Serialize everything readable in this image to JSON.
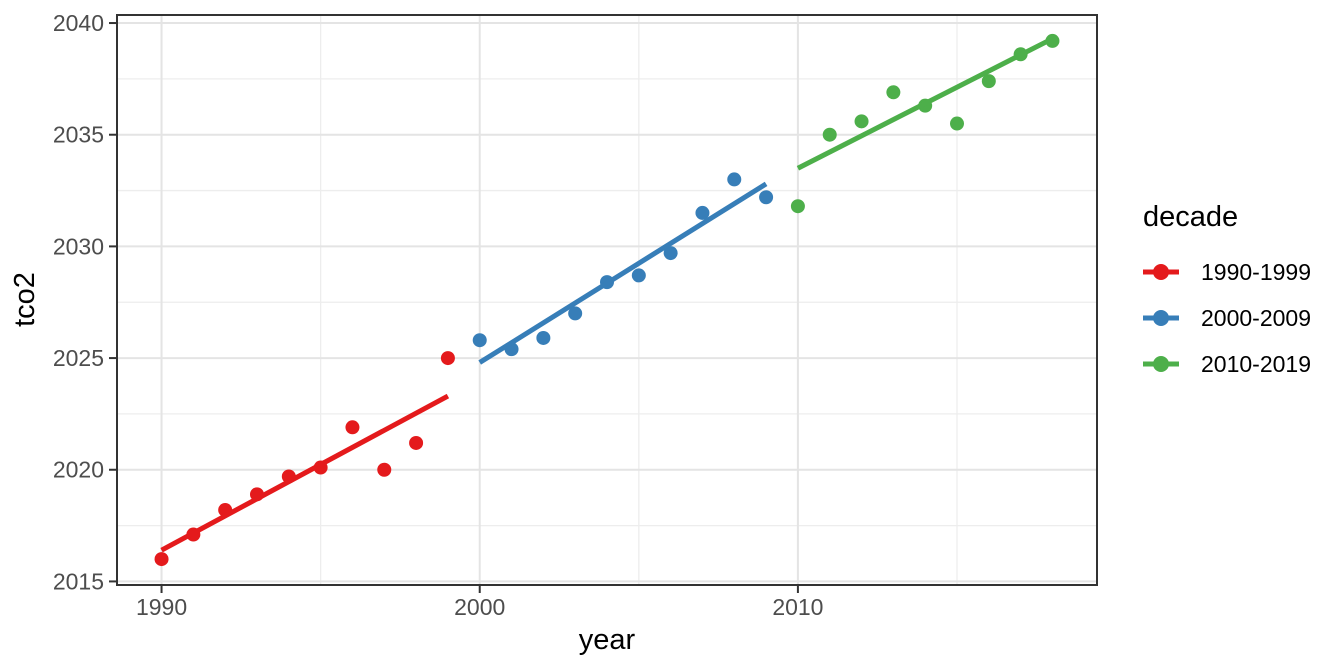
{
  "chart_data": {
    "type": "scatter",
    "title": "",
    "xlabel": "year",
    "ylabel": "tco2",
    "legend_title": "decade",
    "legend_position": "right",
    "legend_key_icon": "line-with-dot",
    "grid": true,
    "xlim": [
      1988.6,
      2019.4
    ],
    "ylim": [
      2014.84,
      2040.36
    ],
    "x_ticks": [
      1990,
      2000,
      2010
    ],
    "x_minor_gridlines": [
      1995,
      2005,
      2015
    ],
    "y_ticks": [
      2015,
      2020,
      2025,
      2030,
      2035,
      2040
    ],
    "y_minor_gridlines": [
      2017.5,
      2022.5,
      2027.5,
      2032.5,
      2037.5
    ],
    "point_radius": 7,
    "trend_line_width": 5,
    "series": [
      {
        "name": "1990-1999",
        "color": "#E41A1C",
        "x": [
          1990,
          1991,
          1992,
          1993,
          1994,
          1995,
          1996,
          1997,
          1998,
          1999
        ],
        "y": [
          2016.0,
          2017.1,
          2018.2,
          2018.9,
          2019.7,
          2020.1,
          2021.9,
          2020.0,
          2021.2,
          2025.0
        ],
        "trend": {
          "x": [
            1990,
            1999
          ],
          "y": [
            2016.4,
            2023.3
          ]
        }
      },
      {
        "name": "2000-2009",
        "color": "#377EB8",
        "x": [
          2000,
          2001,
          2002,
          2003,
          2004,
          2005,
          2006,
          2007,
          2008,
          2009
        ],
        "y": [
          2025.8,
          2025.4,
          2025.9,
          2027.0,
          2028.4,
          2028.7,
          2029.7,
          2031.5,
          2033.0,
          2032.2
        ],
        "trend": {
          "x": [
            2000,
            2009
          ],
          "y": [
            2024.8,
            2032.8
          ]
        }
      },
      {
        "name": "2010-2019",
        "color": "#4DAF4A",
        "x": [
          2010,
          2011,
          2012,
          2013,
          2014,
          2015,
          2016,
          2017,
          2018
        ],
        "y": [
          2031.8,
          2035.0,
          2035.6,
          2036.9,
          2036.3,
          2035.5,
          2037.4,
          2038.6,
          2039.2
        ],
        "trend": {
          "x": [
            2010,
            2018
          ],
          "y": [
            2033.5,
            2039.3
          ]
        }
      }
    ]
  },
  "theme": {
    "background": "#FFFFFF",
    "panel_background": "#FFFFFF",
    "panel_border": "#333333",
    "grid_major": "#E4E4E4",
    "grid_minor": "#EDEDED",
    "tick_mark_color": "#333333",
    "tick_label_color": "#4D4D4D",
    "axis_title_color": "#000000",
    "legend_text_color": "#000000"
  }
}
